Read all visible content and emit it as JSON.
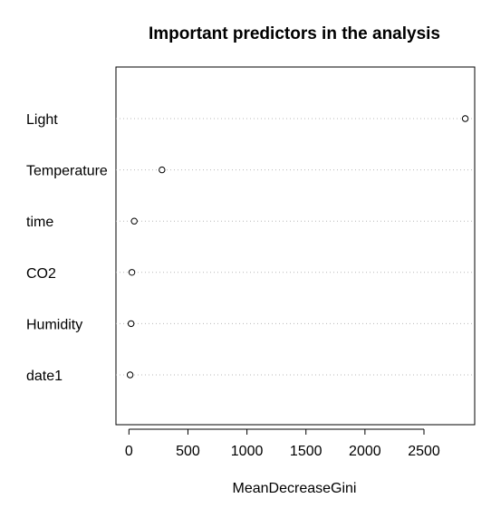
{
  "chart_data": {
    "type": "scatter",
    "title": "Important predictors in the analysis",
    "xlabel": "MeanDecreaseGini",
    "ylabel": "",
    "categories": [
      "Light",
      "Temperature",
      "time",
      "CO2",
      "Humidity",
      "date1"
    ],
    "values": [
      2850,
      280,
      45,
      25,
      18,
      10
    ],
    "xlim": [
      -110,
      2930
    ],
    "xticks": [
      0,
      500,
      1000,
      1500,
      2000,
      2500
    ],
    "tick_labels": [
      "0",
      "500",
      "1000",
      "1500",
      "2000",
      "2500"
    ],
    "grid": "dotted horizontal guide lines per row",
    "point_style": "open circle"
  }
}
